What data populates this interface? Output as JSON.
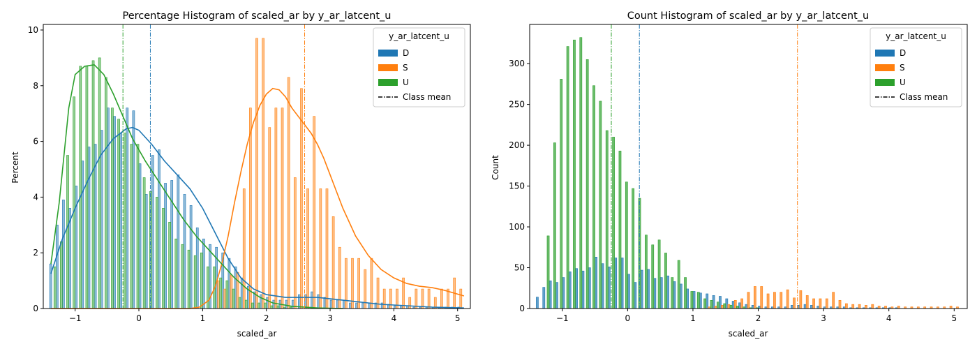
{
  "chart_data": [
    {
      "type": "bar",
      "title": "Percentage Histogram of scaled_ar by y_ar_latcent_u",
      "xlabel": "scaled_ar",
      "ylabel": "Percent",
      "xlim": [
        -1.5,
        5.2
      ],
      "ylim": [
        0,
        10.2
      ],
      "xticks": [
        -1,
        0,
        1,
        2,
        3,
        4,
        5
      ],
      "yticks": [
        0,
        2,
        4,
        6,
        8,
        10
      ],
      "grid": false,
      "legend": {
        "title": "y_ar_latcent_u",
        "placement": "top-right",
        "entries": [
          "D",
          "S",
          "U",
          "Class mean"
        ]
      },
      "bin_centers": [
        -1.35,
        -1.25,
        -1.15,
        -1.05,
        -0.95,
        -0.85,
        -0.75,
        -0.65,
        -0.55,
        -0.45,
        -0.35,
        -0.25,
        -0.15,
        -0.05,
        0.05,
        0.15,
        0.25,
        0.35,
        0.45,
        0.55,
        0.65,
        0.75,
        0.85,
        0.95,
        1.05,
        1.15,
        1.25,
        1.35,
        1.45,
        1.55,
        1.65,
        1.75,
        1.85,
        1.95,
        2.05,
        2.15,
        2.25,
        2.35,
        2.45,
        2.55,
        2.65,
        2.75,
        2.85,
        2.95,
        3.05,
        3.15,
        3.25,
        3.35,
        3.45,
        3.55,
        3.65,
        3.75,
        3.85,
        3.95,
        4.05,
        4.15,
        4.25,
        4.35,
        4.45,
        4.55,
        4.65,
        4.75,
        4.85,
        4.95,
        5.05
      ],
      "series": [
        {
          "name": "D",
          "color": "#1f77b4",
          "values": [
            1.6,
            3.0,
            3.9,
            3.6,
            4.4,
            5.3,
            5.8,
            5.9,
            6.4,
            7.2,
            6.9,
            6.3,
            7.2,
            7.1,
            5.2,
            4.1,
            5.5,
            5.7,
            4.5,
            4.6,
            4.8,
            4.1,
            3.7,
            2.9,
            2.5,
            2.3,
            2.2,
            2.0,
            1.8,
            1.5,
            1.1,
            0.8,
            0.6,
            0.5,
            0.4,
            0.3,
            0.3,
            0.3,
            0.3,
            0.5,
            0.5,
            0.6,
            0.5,
            0.4,
            0.3,
            0.3,
            0.3,
            0.2,
            0.2,
            0.2,
            0.2,
            0.2,
            0.2,
            0.15,
            0.1,
            0.1,
            0.1,
            0.05,
            0.05,
            0.05,
            0.05,
            0.05,
            0.05,
            0.05,
            0.05
          ],
          "kde": [
            [
              -1.38,
              1.25
            ],
            [
              -1.2,
              2.5
            ],
            [
              -1.0,
              3.6
            ],
            [
              -0.8,
              4.6
            ],
            [
              -0.6,
              5.5
            ],
            [
              -0.4,
              6.1
            ],
            [
              -0.2,
              6.45
            ],
            [
              -0.1,
              6.5
            ],
            [
              0.0,
              6.4
            ],
            [
              0.2,
              5.9
            ],
            [
              0.4,
              5.3
            ],
            [
              0.6,
              4.8
            ],
            [
              0.8,
              4.3
            ],
            [
              1.0,
              3.6
            ],
            [
              1.2,
              2.7
            ],
            [
              1.4,
              1.8
            ],
            [
              1.6,
              1.1
            ],
            [
              1.8,
              0.7
            ],
            [
              2.0,
              0.5
            ],
            [
              2.3,
              0.4
            ],
            [
              2.6,
              0.4
            ],
            [
              2.8,
              0.4
            ],
            [
              3.0,
              0.35
            ],
            [
              3.4,
              0.25
            ],
            [
              3.8,
              0.15
            ],
            [
              4.2,
              0.1
            ],
            [
              4.6,
              0.05
            ],
            [
              5.1,
              0.02
            ]
          ],
          "mean": 0.18
        },
        {
          "name": "S",
          "color": "#ff7f0e",
          "values": [
            0,
            0,
            0,
            0,
            0,
            0,
            0,
            0,
            0,
            0,
            0,
            0,
            0,
            0,
            0,
            0,
            0,
            0,
            0,
            0,
            0,
            0,
            0,
            0,
            0,
            0,
            1.0,
            0.7,
            1.2,
            1.3,
            4.3,
            7.2,
            9.7,
            9.7,
            6.5,
            7.2,
            7.2,
            8.3,
            4.7,
            7.9,
            4.3,
            6.9,
            4.3,
            4.3,
            3.3,
            2.2,
            1.8,
            1.8,
            1.8,
            1.4,
            1.8,
            1.1,
            0.7,
            0.7,
            0.7,
            1.1,
            0.4,
            0.7,
            0.7,
            0.7,
            0.4,
            0.7,
            0.7,
            1.1,
            0.7
          ],
          "kde": [
            [
              -1.38,
              0
            ],
            [
              0.8,
              0
            ],
            [
              0.95,
              0.05
            ],
            [
              1.1,
              0.3
            ],
            [
              1.2,
              0.8
            ],
            [
              1.3,
              1.6
            ],
            [
              1.4,
              2.6
            ],
            [
              1.5,
              3.8
            ],
            [
              1.6,
              4.9
            ],
            [
              1.7,
              5.9
            ],
            [
              1.8,
              6.7
            ],
            [
              1.9,
              7.3
            ],
            [
              2.0,
              7.7
            ],
            [
              2.1,
              7.9
            ],
            [
              2.2,
              7.85
            ],
            [
              2.3,
              7.6
            ],
            [
              2.4,
              7.2
            ],
            [
              2.5,
              6.9
            ],
            [
              2.6,
              6.6
            ],
            [
              2.7,
              6.3
            ],
            [
              2.8,
              5.9
            ],
            [
              2.9,
              5.4
            ],
            [
              3.0,
              4.8
            ],
            [
              3.2,
              3.6
            ],
            [
              3.4,
              2.6
            ],
            [
              3.6,
              1.9
            ],
            [
              3.8,
              1.4
            ],
            [
              4.0,
              1.1
            ],
            [
              4.2,
              0.9
            ],
            [
              4.4,
              0.8
            ],
            [
              4.6,
              0.75
            ],
            [
              4.8,
              0.65
            ],
            [
              5.1,
              0.45
            ]
          ],
          "mean": 2.6
        },
        {
          "name": "U",
          "color": "#2ca02c",
          "values": [
            1.5,
            2.4,
            5.5,
            7.6,
            8.7,
            8.7,
            8.9,
            9.0,
            8.3,
            7.2,
            6.8,
            6.3,
            5.9,
            5.9,
            4.7,
            4.2,
            4.0,
            3.6,
            3.1,
            2.5,
            2.3,
            2.1,
            1.9,
            2.0,
            1.5,
            1.5,
            1.1,
            1.0,
            0.7,
            0.4,
            0.3,
            0.2,
            0.2,
            0.2,
            0.1,
            0.1,
            0.05,
            0.05,
            0,
            0,
            0,
            0,
            0,
            0,
            0,
            0,
            0,
            0,
            0,
            0,
            0,
            0,
            0,
            0,
            0,
            0,
            0,
            0,
            0,
            0,
            0,
            0,
            0,
            0,
            0
          ],
          "kde": [
            [
              -1.38,
              1.6
            ],
            [
              -1.25,
              3.8
            ],
            [
              -1.1,
              7.2
            ],
            [
              -1.0,
              8.4
            ],
            [
              -0.85,
              8.7
            ],
            [
              -0.7,
              8.75
            ],
            [
              -0.55,
              8.4
            ],
            [
              -0.4,
              7.7
            ],
            [
              -0.25,
              6.9
            ],
            [
              -0.1,
              6.1
            ],
            [
              0.1,
              5.3
            ],
            [
              0.3,
              4.6
            ],
            [
              0.5,
              3.9
            ],
            [
              0.7,
              3.2
            ],
            [
              0.9,
              2.6
            ],
            [
              1.1,
              2.1
            ],
            [
              1.3,
              1.6
            ],
            [
              1.5,
              1.1
            ],
            [
              1.7,
              0.7
            ],
            [
              1.9,
              0.4
            ],
            [
              2.1,
              0.2
            ],
            [
              2.4,
              0.08
            ],
            [
              2.8,
              0.02
            ],
            [
              3.2,
              0
            ]
          ],
          "mean": -0.25
        }
      ]
    },
    {
      "type": "bar",
      "title": "Count Histogram of scaled_ar by y_ar_latcent_u",
      "xlabel": "scaled_ar",
      "ylabel": "Count",
      "xlim": [
        -1.5,
        5.2
      ],
      "ylim": [
        0,
        348
      ],
      "xticks": [
        -1,
        0,
        1,
        2,
        3,
        4,
        5
      ],
      "yticks": [
        0,
        50,
        100,
        150,
        200,
        250,
        300
      ],
      "grid": false,
      "legend": {
        "title": "y_ar_latcent_u",
        "placement": "top-right",
        "entries": [
          "D",
          "S",
          "U",
          "Class mean"
        ]
      },
      "bin_centers": [
        -1.35,
        -1.25,
        -1.15,
        -1.05,
        -0.95,
        -0.85,
        -0.75,
        -0.65,
        -0.55,
        -0.45,
        -0.35,
        -0.25,
        -0.15,
        -0.05,
        0.05,
        0.15,
        0.25,
        0.35,
        0.45,
        0.55,
        0.65,
        0.75,
        0.85,
        0.95,
        1.05,
        1.15,
        1.25,
        1.35,
        1.45,
        1.55,
        1.65,
        1.75,
        1.85,
        1.95,
        2.05,
        2.15,
        2.25,
        2.35,
        2.45,
        2.55,
        2.65,
        2.75,
        2.85,
        2.95,
        3.05,
        3.15,
        3.25,
        3.35,
        3.45,
        3.55,
        3.65,
        3.75,
        3.85,
        3.95,
        4.05,
        4.15,
        4.25,
        4.35,
        4.45,
        4.55,
        4.65,
        4.75,
        4.85,
        4.95,
        5.05
      ],
      "series": [
        {
          "name": "D",
          "color": "#1f77b4",
          "values": [
            14,
            26,
            34,
            32,
            38,
            45,
            49,
            46,
            50,
            63,
            55,
            51,
            62,
            62,
            42,
            32,
            47,
            48,
            37,
            38,
            40,
            33,
            30,
            24,
            21,
            19,
            18,
            16,
            15,
            12,
            9,
            7,
            5,
            4,
            3,
            2,
            2,
            2,
            2,
            4,
            4,
            5,
            4,
            3,
            2,
            2,
            2,
            2,
            1,
            1,
            1,
            1,
            1,
            1,
            1,
            1,
            0,
            0,
            0,
            0,
            0,
            0,
            0,
            0,
            0
          ],
          "mean": 0.18
        },
        {
          "name": "S",
          "color": "#ff7f0e",
          "values": [
            0,
            0,
            0,
            0,
            0,
            0,
            0,
            0,
            0,
            0,
            0,
            0,
            0,
            0,
            0,
            0,
            0,
            0,
            0,
            0,
            0,
            0,
            0,
            0,
            0,
            0,
            2,
            3,
            4,
            5,
            10,
            12,
            20,
            27,
            27,
            18,
            20,
            20,
            23,
            13,
            22,
            16,
            12,
            12,
            12,
            20,
            10,
            6,
            5,
            5,
            4,
            5,
            3,
            3,
            2,
            3,
            2,
            2,
            2,
            2,
            2,
            2,
            2,
            3,
            2
          ],
          "mean": 2.6
        },
        {
          "name": "U",
          "color": "#2ca02c",
          "values": [
            0,
            89,
            203,
            281,
            321,
            329,
            332,
            305,
            273,
            254,
            218,
            210,
            193,
            155,
            147,
            135,
            90,
            78,
            84,
            68,
            38,
            59,
            38,
            21,
            20,
            12,
            10,
            8,
            6,
            4,
            3,
            2,
            1,
            1,
            0,
            0,
            0,
            0,
            0,
            0,
            0,
            0,
            0,
            0,
            0,
            0,
            0,
            0,
            0,
            0,
            0,
            0,
            0,
            0,
            0,
            0,
            0,
            0,
            0,
            0,
            0,
            0,
            0,
            0,
            0
          ],
          "mean": -0.25
        }
      ]
    }
  ]
}
